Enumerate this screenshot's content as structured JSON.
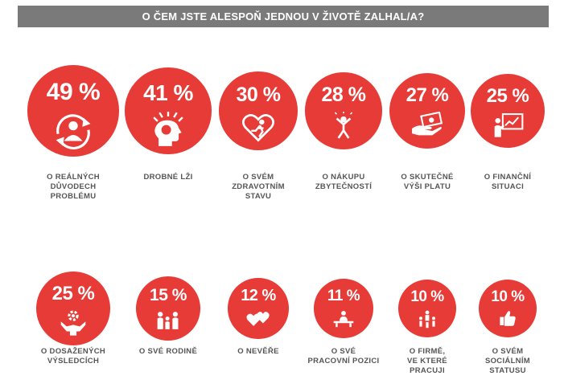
{
  "title": "O ČEM  JSTE ALESPOŇ JEDNOU V ŽIVOTĚ ZALHAL/A?",
  "accent_color": "#e63b37",
  "chart_data": {
    "type": "bubble",
    "unit": "%",
    "items": [
      {
        "value_label": "49 %",
        "value": 49,
        "label_lines": [
          "O REÁLNÝCH",
          "DŮVODECH",
          "PROBLÉMU"
        ],
        "icon": "person-cycle-icon"
      },
      {
        "value_label": "41 %",
        "value": 41,
        "label_lines": [
          "DROBNÉ LŽI"
        ],
        "icon": "head-thoughts-icon"
      },
      {
        "value_label": "30 %",
        "value": 30,
        "label_lines": [
          "O SVÉM",
          "ZDRAVOTNÍM",
          "STAVU"
        ],
        "icon": "heart-runner-icon"
      },
      {
        "value_label": "28 %",
        "value": 28,
        "label_lines": [
          "O NÁKUPU",
          "ZBYTEČNOSTÍ"
        ],
        "icon": "jumping-person-icon"
      },
      {
        "value_label": "27 %",
        "value": 27,
        "label_lines": [
          "O SKUTEČNÉ",
          "VÝŠI PLATU"
        ],
        "icon": "money-hand-icon"
      },
      {
        "value_label": "25 %",
        "value": 25,
        "label_lines": [
          "O FINANČNÍ",
          "SITUACI"
        ],
        "icon": "presentation-chart-icon"
      },
      {
        "value_label": "25 %",
        "value": 25,
        "label_lines": [
          "O DOSAŽENÝCH",
          "VÝSLEDCÍCH"
        ],
        "icon": "gear-person-icon"
      },
      {
        "value_label": "15 %",
        "value": 15,
        "label_lines": [
          "O SVÉ RODINĚ"
        ],
        "icon": "family-icon"
      },
      {
        "value_label": "12 %",
        "value": 12,
        "label_lines": [
          "O NEVĚŘE"
        ],
        "icon": "hearts-icon"
      },
      {
        "value_label": "11 %",
        "value": 11,
        "label_lines": [
          "O SVÉ",
          "PRACOVNÍ POZICI"
        ],
        "icon": "desk-person-icon"
      },
      {
        "value_label": "10 %",
        "value": 10,
        "label_lines": [
          "O FIRMĚ,",
          "VE KTERÉ",
          "PRACUJI"
        ],
        "icon": "team-icon"
      },
      {
        "value_label": "10 %",
        "value": 10,
        "label_lines": [
          "O SVÉM",
          "SOCIÁLNÍM",
          "STATUSU"
        ],
        "icon": "thumbs-up-icon"
      }
    ]
  }
}
